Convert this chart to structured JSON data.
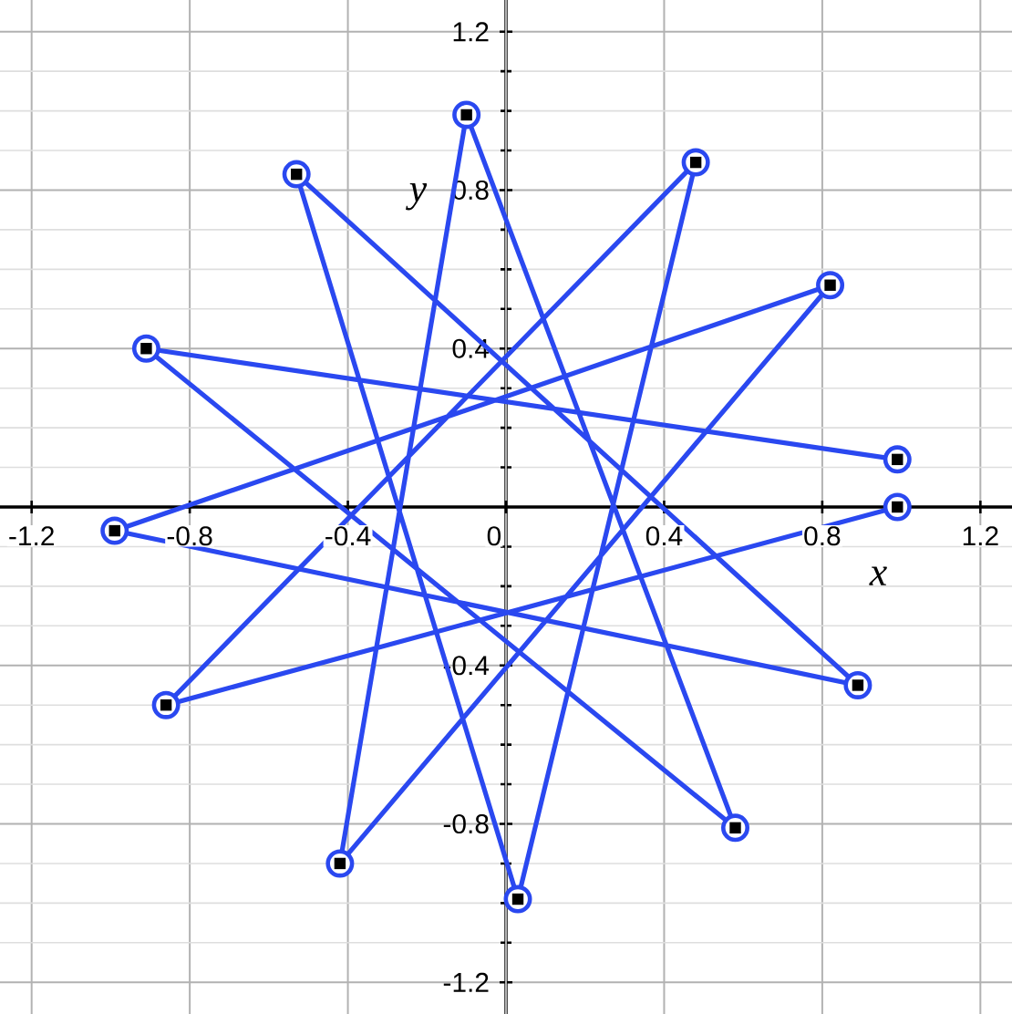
{
  "chart_data": {
    "type": "line",
    "xlabel": "x",
    "ylabel": "y",
    "x": [
      0.99,
      -0.86,
      0.48,
      0.03,
      -0.53,
      0.89,
      -0.99,
      0.82,
      -0.42,
      -0.1,
      0.58,
      -0.91,
      0.99
    ],
    "series": [
      {
        "color": "#2a48f0",
        "values": [
          0.0,
          -0.5,
          0.87,
          -0.99,
          0.84,
          -0.45,
          -0.06,
          0.56,
          -0.9,
          0.99,
          -0.81,
          0.4,
          0.12
        ]
      }
    ],
    "xlim": [
      -1.28,
      1.28
    ],
    "ylim": [
      -1.28,
      1.28
    ],
    "xticks": [
      -1.2,
      -0.8,
      -0.4,
      0,
      0.4,
      0.8,
      1.2
    ],
    "yticks": [
      -1.2,
      -0.8,
      -0.4,
      {
        "value": 0,
        "label": null
      },
      0.4,
      0.8,
      1.2
    ],
    "grid": true,
    "marker": "circle",
    "line_style": "solid"
  }
}
